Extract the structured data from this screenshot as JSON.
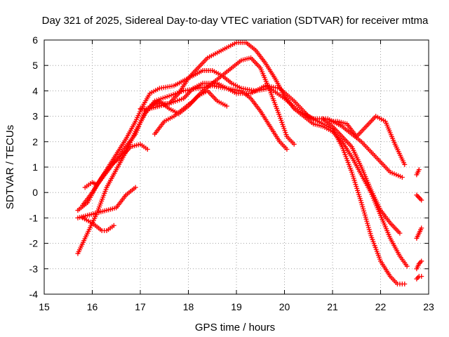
{
  "chart_data": {
    "type": "scatter",
    "title": "Day 321 of 2025, Sidereal Day-to-day VTEC variation (SDTVAR) for receiver mtma",
    "xlabel": "GPS time / hours",
    "ylabel": "SDTVAR / TECUs",
    "xlim": [
      15,
      23
    ],
    "ylim": [
      -4,
      6
    ],
    "xticks": [
      15,
      16,
      17,
      18,
      19,
      20,
      21,
      22,
      23
    ],
    "yticks": [
      -4,
      -3,
      -2,
      -1,
      0,
      1,
      2,
      3,
      4,
      5,
      6
    ],
    "grid": true,
    "marker": "+",
    "series_color": "#ff0000",
    "series": [
      {
        "name": "track-1",
        "points": [
          [
            15.7,
            -2.4
          ],
          [
            15.9,
            -1.6
          ],
          [
            16.1,
            -0.8
          ],
          [
            16.3,
            0.2
          ],
          [
            16.5,
            0.9
          ],
          [
            16.7,
            1.6
          ],
          [
            16.9,
            2.4
          ],
          [
            17.1,
            3.1
          ],
          [
            17.3,
            3.6
          ],
          [
            17.6,
            3.8
          ],
          [
            17.9,
            4.0
          ],
          [
            18.2,
            4.1
          ],
          [
            18.5,
            4.2
          ],
          [
            18.8,
            4.1
          ],
          [
            19.1,
            4.0
          ],
          [
            19.3,
            3.7
          ],
          [
            19.5,
            3.2
          ],
          [
            19.7,
            2.6
          ],
          [
            19.9,
            2.0
          ],
          [
            20.05,
            1.7
          ]
        ]
      },
      {
        "name": "track-2",
        "points": [
          [
            15.7,
            -0.7
          ],
          [
            15.9,
            -0.4
          ],
          [
            16.1,
            0.3
          ],
          [
            16.3,
            0.9
          ],
          [
            16.5,
            1.5
          ],
          [
            16.7,
            2.1
          ],
          [
            16.9,
            2.8
          ],
          [
            17.05,
            3.4
          ],
          [
            17.2,
            3.9
          ],
          [
            17.4,
            4.1
          ],
          [
            17.7,
            4.2
          ],
          [
            18.0,
            4.5
          ],
          [
            18.3,
            4.8
          ],
          [
            18.5,
            4.8
          ],
          [
            18.7,
            4.6
          ],
          [
            18.9,
            4.3
          ],
          [
            19.1,
            4.1
          ],
          [
            19.4,
            4.0
          ],
          [
            19.7,
            4.1
          ],
          [
            20.0,
            3.7
          ],
          [
            20.3,
            3.2
          ],
          [
            20.6,
            2.9
          ],
          [
            20.9,
            2.9
          ],
          [
            21.2,
            2.6
          ],
          [
            21.4,
            2.3
          ],
          [
            21.6,
            2.0
          ],
          [
            21.9,
            1.4
          ],
          [
            22.2,
            0.8
          ],
          [
            22.45,
            0.6
          ]
        ]
      },
      {
        "name": "track-3",
        "points": [
          [
            15.7,
            -1.0
          ],
          [
            15.9,
            -0.9
          ],
          [
            16.1,
            -0.8
          ],
          [
            16.3,
            -0.7
          ],
          [
            16.5,
            -0.6
          ],
          [
            16.7,
            -0.1
          ],
          [
            16.9,
            0.2
          ]
        ]
      },
      {
        "name": "track-4",
        "points": [
          [
            15.8,
            -1.0
          ],
          [
            16.0,
            -1.2
          ],
          [
            16.2,
            -1.5
          ],
          [
            16.3,
            -1.5
          ],
          [
            16.45,
            -1.3
          ]
        ]
      },
      {
        "name": "track-5",
        "points": [
          [
            15.8,
            -0.5
          ],
          [
            16.0,
            0.0
          ],
          [
            16.2,
            0.6
          ],
          [
            16.4,
            1.1
          ],
          [
            16.6,
            1.4
          ],
          [
            16.8,
            1.8
          ],
          [
            17.0,
            1.9
          ],
          [
            17.15,
            1.7
          ]
        ]
      },
      {
        "name": "track-6",
        "points": [
          [
            15.85,
            0.2
          ],
          [
            16.0,
            0.4
          ],
          [
            16.1,
            0.3
          ],
          [
            16.3,
            0.8
          ],
          [
            16.5,
            1.3
          ],
          [
            16.7,
            1.8
          ],
          [
            16.9,
            2.3
          ],
          [
            17.1,
            3.2
          ],
          [
            17.3,
            3.5
          ],
          [
            17.6,
            3.5
          ],
          [
            17.9,
            3.7
          ],
          [
            18.1,
            4.1
          ],
          [
            18.3,
            4.3
          ],
          [
            18.6,
            4.3
          ],
          [
            18.8,
            4.1
          ],
          [
            19.0,
            3.9
          ],
          [
            19.3,
            3.9
          ],
          [
            19.6,
            4.2
          ],
          [
            19.9,
            4.1
          ],
          [
            20.2,
            3.6
          ],
          [
            20.5,
            3.0
          ],
          [
            20.8,
            2.7
          ],
          [
            21.0,
            2.5
          ],
          [
            21.2,
            1.8
          ],
          [
            21.4,
            0.8
          ],
          [
            21.6,
            -0.4
          ],
          [
            21.8,
            -1.7
          ],
          [
            22.0,
            -2.7
          ],
          [
            22.2,
            -3.3
          ],
          [
            22.35,
            -3.6
          ],
          [
            22.5,
            -3.6
          ]
        ]
      },
      {
        "name": "track-7",
        "points": [
          [
            17.3,
            2.3
          ],
          [
            17.5,
            2.8
          ],
          [
            17.7,
            3.0
          ],
          [
            17.9,
            3.3
          ],
          [
            18.1,
            3.6
          ],
          [
            18.3,
            4.0
          ],
          [
            18.5,
            4.3
          ],
          [
            18.7,
            4.6
          ],
          [
            18.9,
            4.9
          ],
          [
            19.1,
            5.2
          ],
          [
            19.3,
            5.3
          ],
          [
            19.5,
            4.9
          ],
          [
            19.7,
            4.0
          ],
          [
            19.9,
            3.0
          ],
          [
            20.05,
            2.2
          ],
          [
            20.2,
            1.9
          ]
        ]
      },
      {
        "name": "track-8",
        "points": [
          [
            17.0,
            3.3
          ],
          [
            17.2,
            3.3
          ],
          [
            17.4,
            3.4
          ],
          [
            17.6,
            3.5
          ],
          [
            17.8,
            3.9
          ],
          [
            18.0,
            4.5
          ],
          [
            18.2,
            4.9
          ],
          [
            18.4,
            5.3
          ],
          [
            18.6,
            5.5
          ],
          [
            18.8,
            5.7
          ],
          [
            19.0,
            5.9
          ],
          [
            19.2,
            5.9
          ],
          [
            19.4,
            5.6
          ],
          [
            19.6,
            5.1
          ],
          [
            19.8,
            4.5
          ],
          [
            20.0,
            3.8
          ],
          [
            20.2,
            3.3
          ],
          [
            20.4,
            3.0
          ],
          [
            20.6,
            2.7
          ],
          [
            20.8,
            2.6
          ],
          [
            21.0,
            2.4
          ],
          [
            21.2,
            2.0
          ],
          [
            21.4,
            1.4
          ],
          [
            21.6,
            0.7
          ],
          [
            21.8,
            0.0
          ],
          [
            22.0,
            -0.9
          ],
          [
            22.2,
            -1.8
          ],
          [
            22.4,
            -2.5
          ],
          [
            22.55,
            -2.9
          ]
        ]
      },
      {
        "name": "track-9",
        "points": [
          [
            17.2,
            3.4
          ],
          [
            17.4,
            3.6
          ],
          [
            17.6,
            3.3
          ],
          [
            17.8,
            3.1
          ],
          [
            18.0,
            3.4
          ],
          [
            18.2,
            3.8
          ],
          [
            18.4,
            4.0
          ],
          [
            18.6,
            3.6
          ],
          [
            18.8,
            3.4
          ]
        ]
      },
      {
        "name": "track-10",
        "points": [
          [
            20.9,
            2.8
          ],
          [
            21.1,
            2.8
          ],
          [
            21.3,
            2.7
          ],
          [
            21.5,
            2.2
          ],
          [
            21.7,
            2.6
          ],
          [
            21.9,
            3.0
          ],
          [
            22.1,
            2.8
          ],
          [
            22.3,
            1.9
          ],
          [
            22.5,
            1.1
          ]
        ]
      },
      {
        "name": "track-11",
        "points": [
          [
            20.8,
            2.9
          ],
          [
            21.0,
            2.6
          ],
          [
            21.2,
            2.2
          ],
          [
            21.4,
            1.8
          ],
          [
            21.6,
            1.0
          ],
          [
            21.8,
            0.1
          ],
          [
            22.0,
            -0.7
          ],
          [
            22.2,
            -1.2
          ],
          [
            22.4,
            -1.6
          ]
        ]
      },
      {
        "name": "track-12",
        "points": [
          [
            22.75,
            0.7
          ],
          [
            22.8,
            0.9
          ]
        ]
      },
      {
        "name": "track-13",
        "points": [
          [
            22.75,
            -0.1
          ],
          [
            22.8,
            -0.2
          ],
          [
            22.85,
            -0.3
          ]
        ]
      },
      {
        "name": "track-14",
        "points": [
          [
            22.75,
            -1.8
          ],
          [
            22.8,
            -1.6
          ],
          [
            22.85,
            -1.4
          ]
        ]
      },
      {
        "name": "track-15",
        "points": [
          [
            22.75,
            -3.0
          ],
          [
            22.8,
            -2.8
          ],
          [
            22.85,
            -2.7
          ]
        ]
      },
      {
        "name": "track-16",
        "points": [
          [
            22.75,
            -3.4
          ],
          [
            22.8,
            -3.3
          ],
          [
            22.85,
            -3.3
          ]
        ]
      }
    ]
  }
}
